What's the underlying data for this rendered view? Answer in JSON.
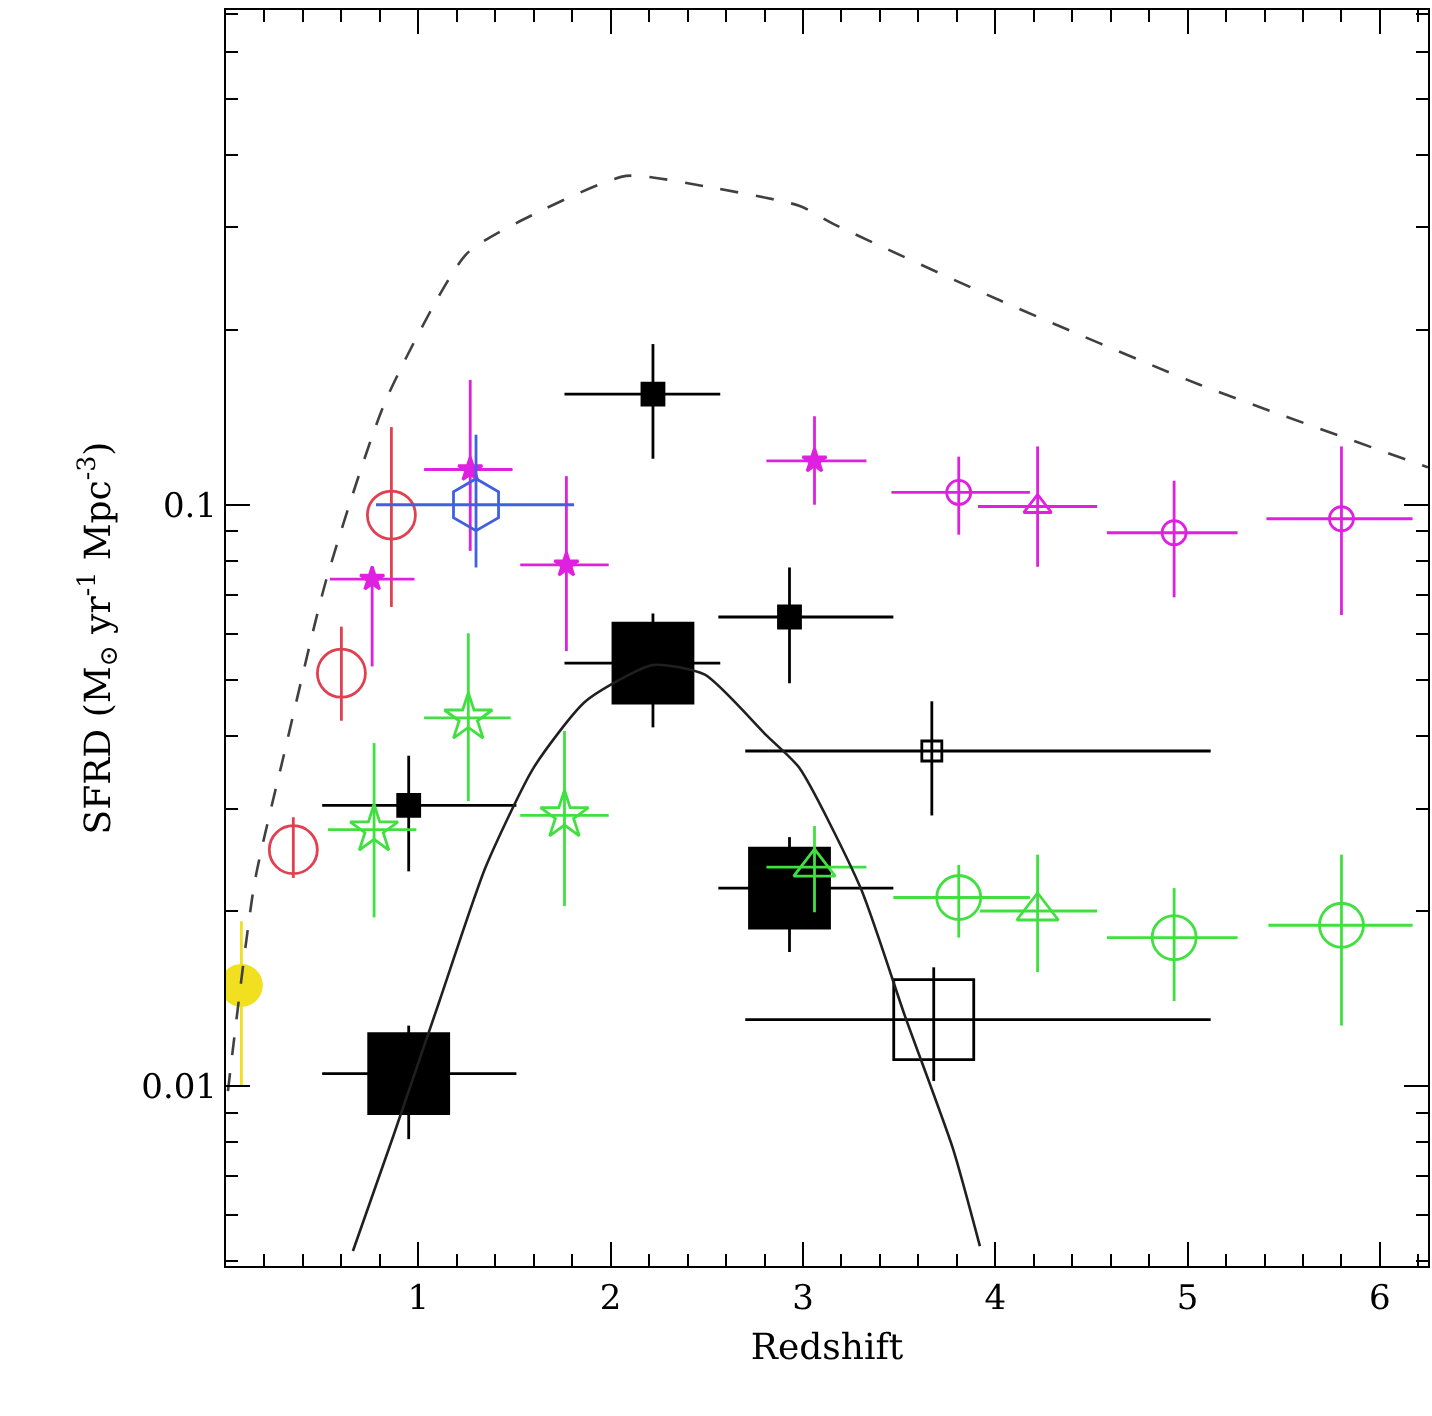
{
  "chart_data": {
    "type": "scatter",
    "xlabel": "Redshift",
    "ylabel": "SFRD (M$_{⊙}$ yr$^{-1}$ Mpc$^{-3}$)",
    "log": "y",
    "xlim": [
      0,
      6.25
    ],
    "ylim": [
      0.0049,
      0.71
    ],
    "xticks": [
      {
        "value": 0.2,
        "label": null
      },
      {
        "value": 0.4,
        "label": null
      },
      {
        "value": 0.6,
        "label": null
      },
      {
        "value": 0.8,
        "label": null
      },
      1,
      {
        "value": 1.2,
        "label": null
      },
      {
        "value": 1.4,
        "label": null
      },
      {
        "value": 1.6,
        "label": null
      },
      {
        "value": 1.8,
        "label": null
      },
      2,
      {
        "value": 2.2,
        "label": null
      },
      {
        "value": 2.4,
        "label": null
      },
      {
        "value": 2.6,
        "label": null
      },
      {
        "value": 2.8,
        "label": null
      },
      3,
      {
        "value": 3.2,
        "label": null
      },
      {
        "value": 3.4,
        "label": null
      },
      {
        "value": 3.6,
        "label": null
      },
      {
        "value": 3.8,
        "label": null
      },
      4,
      {
        "value": 4.2,
        "label": null
      },
      {
        "value": 4.4,
        "label": null
      },
      {
        "value": 4.6,
        "label": null
      },
      {
        "value": 4.8,
        "label": null
      },
      5,
      {
        "value": 5.2,
        "label": null
      },
      {
        "value": 5.4,
        "label": null
      },
      {
        "value": 5.6,
        "label": null
      },
      {
        "value": 5.8,
        "label": null
      },
      6,
      {
        "value": 6.2,
        "label": null
      }
    ],
    "yticks": [
      {
        "value": 0.005,
        "label": null
      },
      {
        "value": 0.006,
        "label": null
      },
      {
        "value": 0.007,
        "label": null
      },
      {
        "value": 0.008,
        "label": null
      },
      {
        "value": 0.009,
        "label": null
      },
      0.01,
      {
        "value": 0.02,
        "label": null
      },
      {
        "value": 0.03,
        "label": null
      },
      {
        "value": 0.04,
        "label": null
      },
      {
        "value": 0.05,
        "label": null
      },
      {
        "value": 0.06,
        "label": null
      },
      {
        "value": 0.07,
        "label": null
      },
      {
        "value": 0.08,
        "label": null
      },
      {
        "value": 0.09,
        "label": null
      },
      0.1,
      {
        "value": 0.2,
        "label": null
      },
      {
        "value": 0.3,
        "label": null
      },
      {
        "value": 0.4,
        "label": null
      },
      {
        "value": 0.5,
        "label": null
      },
      {
        "value": 0.6,
        "label": null
      },
      {
        "value": 0.7,
        "label": null
      }
    ],
    "series": [
      {
        "color": "#f0e020",
        "marker": "circle",
        "x": [
          0.08
        ],
        "values": [
          0.0149
        ],
        "errors": [
          [
            0.01,
            0.0192
          ]
        ]
      },
      {
        "color": "#e04050",
        "marker": "circle",
        "x": [
          0.35,
          0.6,
          0.86
        ],
        "values": [
          0.0255,
          0.0513,
          0.096
        ],
        "errors": [
          [
            0.0228,
            0.029
          ],
          [
            0.0425,
            0.0617
          ],
          [
            0.0667,
            0.136
          ]
        ]
      },
      {
        "color": "#e020e0",
        "marker": "star",
        "x": [
          0.76,
          1.27,
          1.77,
          3.06
        ],
        "values": [
          0.0745,
          0.115,
          0.0788,
          0.119
        ],
        "errors": [
          [
            0.0527,
            0.078
          ],
          [
            0.0833,
            0.164
          ],
          [
            0.056,
            0.112
          ],
          [
            0.1,
            0.142
          ]
        ],
        "xerrors": [
          [
            0.54,
            0.98
          ],
          [
            1.03,
            1.49
          ],
          [
            1.53,
            1.99
          ],
          [
            2.81,
            3.33
          ]
        ]
      },
      {
        "color": "#e020e0",
        "marker": "circle",
        "x": [
          3.81,
          4.93,
          5.8
        ],
        "values": [
          0.105,
          0.0895,
          0.0946
        ],
        "errors": [
          [
            0.0888,
            0.121
          ],
          [
            0.0693,
            0.11
          ],
          [
            0.0646,
            0.126
          ]
        ],
        "xerrors": [
          [
            3.46,
            4.18
          ],
          [
            4.58,
            5.26
          ],
          [
            5.41,
            6.17
          ]
        ]
      },
      {
        "color": "#e020e0",
        "marker": "triangle",
        "x": [
          4.22
        ],
        "values": [
          0.0993
        ],
        "errors": [
          [
            0.0782,
            0.126
          ]
        ],
        "xerrors": [
          [
            3.91,
            4.53
          ]
        ]
      },
      {
        "color": "#4060e0",
        "x": [
          1.3
        ],
        "values": [
          0.1
        ],
        "errors": [
          [
            0.078,
            0.132
          ]
        ],
        "xerrors": [
          [
            0.78,
            1.81
          ]
        ]
      },
      {
        "color": "#000000",
        "marker": "square",
        "x": [
          0.95,
          2.22,
          2.93
        ],
        "values": [
          0.0304,
          0.155,
          0.0641
        ],
        "errors": [
          [
            0.0234,
            0.037
          ],
          [
            0.12,
            0.189
          ],
          [
            0.0493,
            0.078
          ]
        ],
        "xerrors": [
          [
            0.5,
            1.51
          ],
          [
            1.76,
            2.57
          ],
          [
            2.56,
            3.47
          ]
        ]
      },
      {
        "color": "#000000",
        "marker": "square",
        "x": [
          0.95,
          2.22,
          2.93
        ],
        "values": [
          0.0105,
          0.0534,
          0.0219
        ],
        "errors": [
          [
            0.0081,
            0.0127
          ],
          [
            0.0414,
            0.065
          ],
          [
            0.017,
            0.0268
          ]
        ],
        "xerrors": [
          [
            0.5,
            1.51
          ],
          [
            1.76,
            2.57
          ],
          [
            2.56,
            3.47
          ]
        ]
      },
      {
        "color": "#000000",
        "marker": "square",
        "x": [
          3.67
        ],
        "values": [
          0.0377
        ],
        "errors": [
          [
            0.0292,
            0.0459
          ]
        ],
        "xerrors": [
          [
            2.7,
            5.12
          ]
        ]
      },
      {
        "color": "#000000",
        "marker": "square",
        "x": [
          3.68
        ],
        "values": [
          0.013
        ],
        "errors": [
          [
            0.0102,
            0.016
          ]
        ],
        "xerrors": [
          [
            2.7,
            5.12
          ]
        ]
      },
      {
        "color": "#40e040",
        "marker": "star",
        "x": [
          0.77,
          1.26,
          1.76
        ],
        "values": [
          0.0276,
          0.043,
          0.0292
        ],
        "errors": [
          [
            0.0195,
            0.0389
          ],
          [
            0.0309,
            0.0601
          ],
          [
            0.0204,
            0.0408
          ]
        ],
        "xerrors": [
          [
            0.53,
            0.99
          ],
          [
            1.03,
            1.48
          ],
          [
            1.53,
            1.99
          ]
        ]
      },
      {
        "color": "#40e040",
        "marker": "triangle",
        "x": [
          3.06,
          4.22
        ],
        "values": [
          0.0238,
          0.02
        ],
        "errors": [
          [
            0.0199,
            0.028
          ],
          [
            0.0157,
            0.025
          ]
        ],
        "xerrors": [
          [
            2.81,
            3.33
          ],
          [
            3.92,
            4.53
          ]
        ]
      },
      {
        "color": "#40e040",
        "marker": "circle",
        "x": [
          3.81,
          4.93,
          5.8
        ],
        "values": [
          0.0211,
          0.018,
          0.0189
        ],
        "errors": [
          [
            0.018,
            0.024
          ],
          [
            0.014,
            0.0219
          ],
          [
            0.0127,
            0.025
          ]
        ],
        "xerrors": [
          [
            3.47,
            4.18
          ],
          [
            4.58,
            5.26
          ],
          [
            5.42,
            6.17
          ]
        ]
      },
      {
        "type": "line",
        "color": "#404040",
        "line_style": "dashed",
        "x": [
          0.01,
          0.15,
          0.3,
          0.52,
          0.83,
          1.25,
          1.6,
          2.08,
          2.49,
          2.98,
          3.16,
          4.02,
          5.06,
          6.25
        ],
        "values": [
          0.0098,
          0.0225,
          0.037,
          0.074,
          0.151,
          0.27,
          0.316,
          0.368,
          0.353,
          0.327,
          0.304,
          0.225,
          0.161,
          0.116
        ]
      },
      {
        "type": "line",
        "color": "#202020",
        "line_style": "solid",
        "x": [
          0.66,
          0.87,
          1.11,
          1.35,
          1.6,
          1.87,
          2.22,
          2.49,
          2.81,
          2.98,
          3.3,
          3.53,
          3.78,
          3.92
        ],
        "values": [
          0.0052,
          0.0082,
          0.014,
          0.0238,
          0.0353,
          0.0459,
          0.053,
          0.051,
          0.0401,
          0.0353,
          0.0219,
          0.0132,
          0.0078,
          0.0053
        ]
      }
    ]
  }
}
